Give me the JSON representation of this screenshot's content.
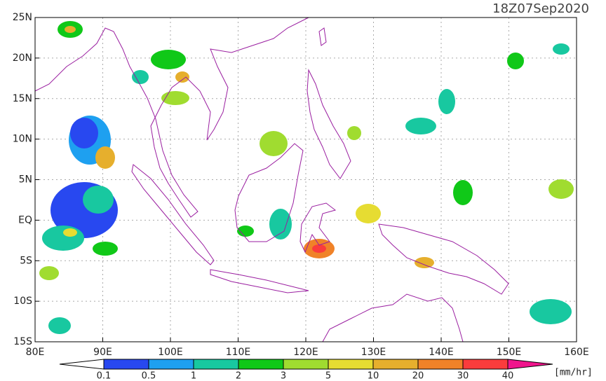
{
  "map": {
    "title": "18Z07Sep2020",
    "lon_range": [
      80,
      160
    ],
    "lat_range": [
      -15,
      25
    ],
    "grid": true,
    "lon_ticks": [
      {
        "value": 80,
        "label": "80E"
      },
      {
        "value": 90,
        "label": "90E"
      },
      {
        "value": 100,
        "label": "100E"
      },
      {
        "value": 110,
        "label": "110E"
      },
      {
        "value": 120,
        "label": "120E"
      },
      {
        "value": 130,
        "label": "130E"
      },
      {
        "value": 140,
        "label": "140E"
      },
      {
        "value": 150,
        "label": "150E"
      },
      {
        "value": 160,
        "label": "160E"
      }
    ],
    "lat_ticks": [
      {
        "value": 25,
        "label": "25N"
      },
      {
        "value": 20,
        "label": "20N"
      },
      {
        "value": 15,
        "label": "15N"
      },
      {
        "value": 10,
        "label": "10N"
      },
      {
        "value": 5,
        "label": "5N"
      },
      {
        "value": 0,
        "label": "EQ"
      },
      {
        "value": -5,
        "label": "5S"
      },
      {
        "value": -10,
        "label": "10S"
      },
      {
        "value": -15,
        "label": "15S"
      }
    ]
  },
  "colorbar": {
    "levels": [
      0.1,
      0.5,
      1,
      2,
      3,
      5,
      10,
      20,
      30,
      40
    ],
    "colors": [
      "#ffffff",
      "#2848f0",
      "#1ea0f0",
      "#18c8a0",
      "#10c818",
      "#a0dc30",
      "#e6dc32",
      "#e6af2d",
      "#f08228",
      "#fa3c3c",
      "#f0148c"
    ],
    "unit": "[mm/hr]"
  }
}
